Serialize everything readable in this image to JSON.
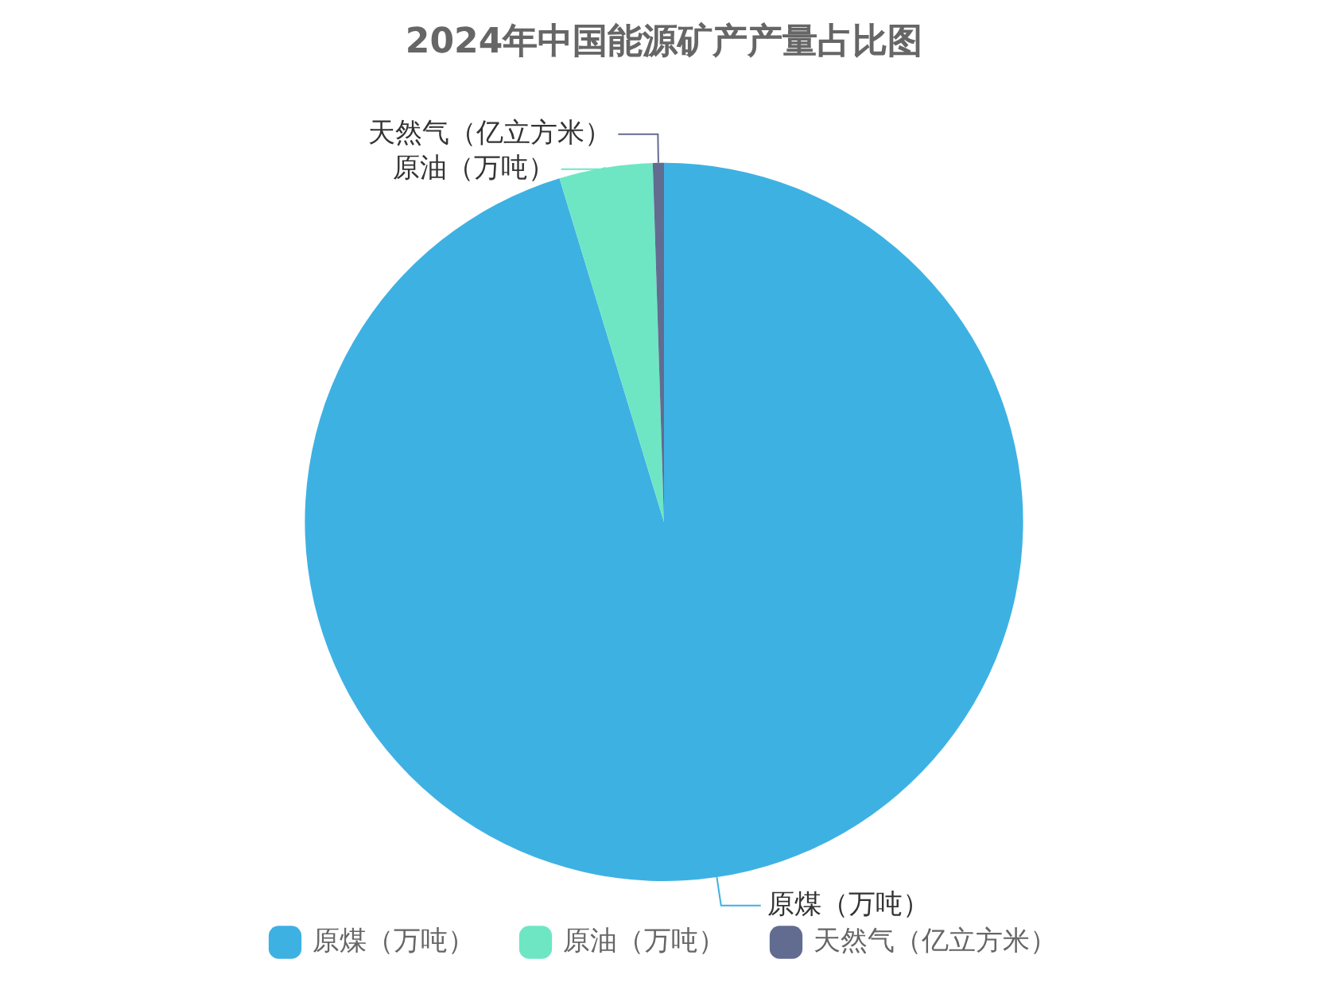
{
  "chart_data": {
    "type": "pie",
    "title": "2024年中国能源矿产产量占比图",
    "categories": [
      "原煤（万吨）",
      "原油（万吨）",
      "天然气（亿立方米）"
    ],
    "values": [
      95.3,
      4.2,
      0.5
    ],
    "colors": [
      "#3eb1e3",
      "#6ee6c4",
      "#626c91"
    ],
    "legend": "bottom"
  }
}
